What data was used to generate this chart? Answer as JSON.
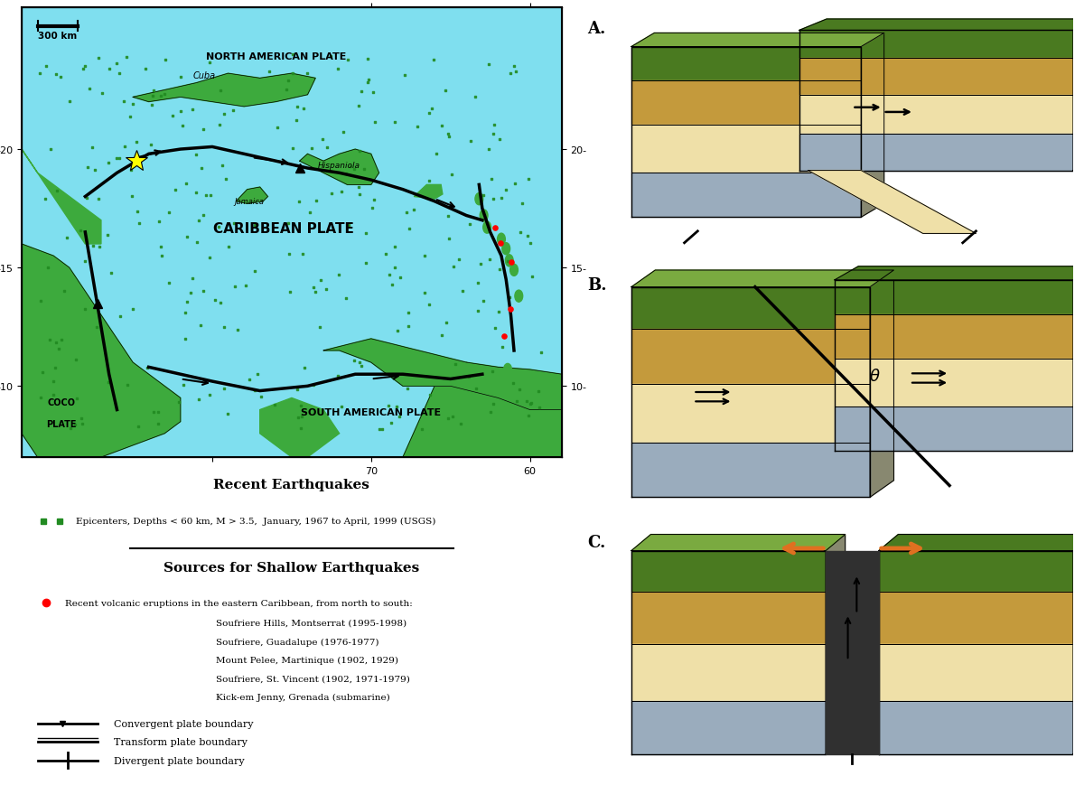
{
  "map_bg_color": "#7FDFEF",
  "land_color": "#3DAA3D",
  "legend_box_color": "#FFFFFF",
  "labels": {
    "north_american_plate": "NORTH AMERICAN PLATE",
    "caribbean_plate": "CARIBBEAN PLATE",
    "south_american_plate": "SOUTH AMERICAN PLATE",
    "coco1": "COCO",
    "coco2": "PLATE",
    "cuba": "Cuba",
    "hispaniola": "Hispaniola",
    "jamaica": "Jamaica"
  },
  "legend_title1": "Recent Earthquakes",
  "legend_epicenter_text": "Epicenters, Depths < 60 km, M > 3.5,  January, 1967 to April, 1999 (USGS)",
  "legend_title2": "Sources for Shallow Earthquakes",
  "legend_volcanic_text": "Recent volcanic eruptions in the eastern Caribbean, from north to south:",
  "legend_volcanic_list": [
    "Soufriere Hills, Montserrat (1995-1998)",
    "Soufriere, Guadalupe (1976-1977)",
    "Mount Pelee, Martinique (1902, 1929)",
    "Soufriere, St. Vincent (1902, 1971-1979)",
    "Kick-em Jenny, Grenada (submarine)"
  ],
  "legend_boundary_labels": [
    "Convergent plate boundary",
    "Transform plate boundary",
    "Divergent plate boundary"
  ],
  "diagram_labels": [
    "A.",
    "B.",
    "C."
  ],
  "scale_text": "300 km",
  "background_color": "#FFFFFF",
  "grass_dark": "#4A7A20",
  "grass_light": "#7AAA40",
  "soil": "#C49A3C",
  "cream": "#EFE0A8",
  "grey_blue": "#9AACBD",
  "lt_grey": "#D0D8E4",
  "orange": "#E07020"
}
